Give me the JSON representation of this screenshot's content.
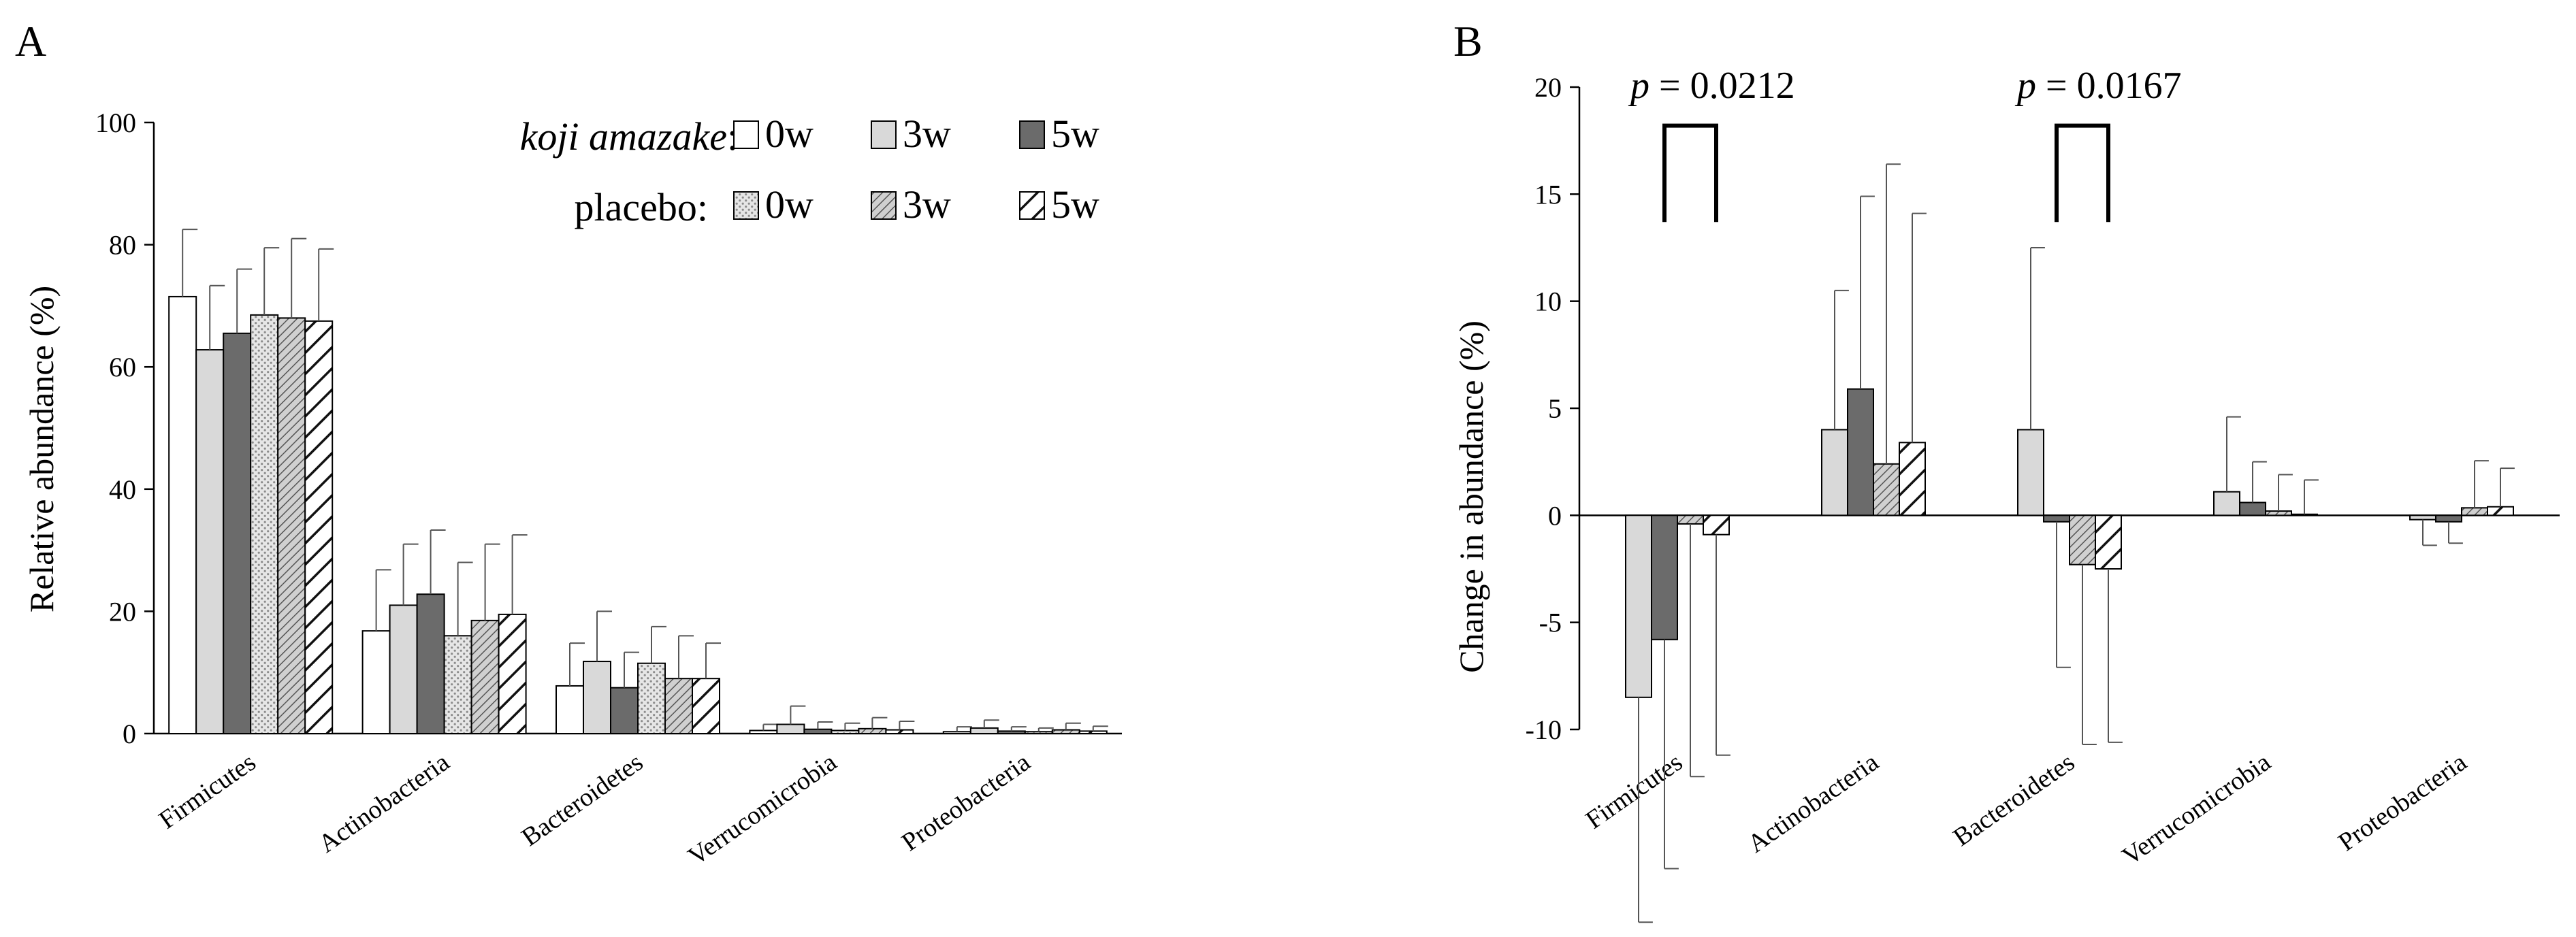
{
  "chart_data": [
    {
      "type": "bar",
      "panel_label": "A",
      "ylabel": "Relative abundance (%)",
      "xlabel": "",
      "ylim": [
        0,
        100
      ],
      "yticks": [
        0,
        20,
        40,
        60,
        80,
        100
      ],
      "categories": [
        "Firmicutes",
        "Actinobacteria",
        "Bacteroidetes",
        "Verrucomicrobia",
        "Proteobacteria"
      ],
      "legend": {
        "group1_label": "koji amazake",
        "group1_suffix": ":",
        "group2_label": "placebo:",
        "entries": [
          "0w",
          "3w",
          "5w"
        ]
      },
      "series": [
        {
          "name": "koji amazake 0w",
          "fill": "white",
          "color": "#ffffff",
          "values": [
            71.5,
            16.8,
            7.8,
            0.5,
            0.3
          ],
          "errors": [
            11.0,
            10.0,
            7.0,
            1.0,
            0.8
          ]
        },
        {
          "name": "koji amazake 3w",
          "fill": "light",
          "color": "#d9d9d9",
          "values": [
            62.8,
            21.0,
            11.8,
            1.5,
            0.9
          ],
          "errors": [
            10.5,
            10.0,
            8.2,
            3.0,
            1.3
          ]
        },
        {
          "name": "koji amazake 5w",
          "fill": "dark",
          "color": "#6b6b6b",
          "values": [
            65.5,
            22.8,
            7.5,
            0.7,
            0.4
          ],
          "errors": [
            10.5,
            10.5,
            5.8,
            1.2,
            0.7
          ]
        },
        {
          "name": "placebo 0w",
          "fill": "dotted",
          "color": "#d9d9d9",
          "values": [
            68.5,
            16.0,
            11.5,
            0.5,
            0.3
          ],
          "errors": [
            11.0,
            12.0,
            6.0,
            1.2,
            0.6
          ]
        },
        {
          "name": "placebo 3w",
          "fill": "hatched",
          "color": "#bfbfbf",
          "values": [
            68.0,
            18.5,
            9.0,
            0.8,
            0.6
          ],
          "errors": [
            13.0,
            12.5,
            7.0,
            1.8,
            1.1
          ]
        },
        {
          "name": "placebo 5w",
          "fill": "stripes",
          "color": "#ffffff",
          "values": [
            67.5,
            19.5,
            9.0,
            0.6,
            0.4
          ],
          "errors": [
            11.8,
            13.0,
            5.8,
            1.4,
            0.8
          ]
        }
      ]
    },
    {
      "type": "bar",
      "panel_label": "B",
      "ylabel": "Change in abundance (%)",
      "xlabel": "",
      "ylim": [
        -10,
        20
      ],
      "yticks": [
        -10,
        -5,
        0,
        5,
        10,
        15,
        20
      ],
      "categories": [
        "Firmicutes",
        "Actinobacteria",
        "Bacteroidetes",
        "Verrucomicrobia",
        "Proteobacteria"
      ],
      "series": [
        {
          "name": "koji amazake 3w",
          "fill": "light",
          "color": "#d9d9d9",
          "values": [
            -8.5,
            4.0,
            4.0,
            1.1,
            -0.2
          ],
          "errors": [
            10.5,
            6.5,
            8.5,
            3.5,
            1.2
          ]
        },
        {
          "name": "koji amazake 5w",
          "fill": "dark",
          "color": "#6b6b6b",
          "values": [
            -5.8,
            5.9,
            -0.3,
            0.6,
            -0.3
          ],
          "errors": [
            10.7,
            9.0,
            6.8,
            1.9,
            1.0
          ]
        },
        {
          "name": "placebo 3w",
          "fill": "hatched",
          "color": "#bfbfbf",
          "values": [
            -0.4,
            2.4,
            -2.3,
            0.2,
            0.35
          ],
          "errors": [
            11.8,
            14.0,
            8.4,
            1.7,
            2.2
          ]
        },
        {
          "name": "placebo 5w",
          "fill": "stripes",
          "color": "#ffffff",
          "values": [
            -0.9,
            3.4,
            -2.5,
            0.05,
            0.4
          ],
          "errors": [
            10.3,
            10.7,
            8.1,
            1.6,
            1.8
          ]
        }
      ],
      "annotations": [
        {
          "text_italic": "p",
          "text_rest": " = 0.0212",
          "category": "Firmicutes"
        },
        {
          "text_italic": "p",
          "text_rest": " = 0.0167",
          "category": "Bacteroidetes"
        }
      ]
    }
  ]
}
